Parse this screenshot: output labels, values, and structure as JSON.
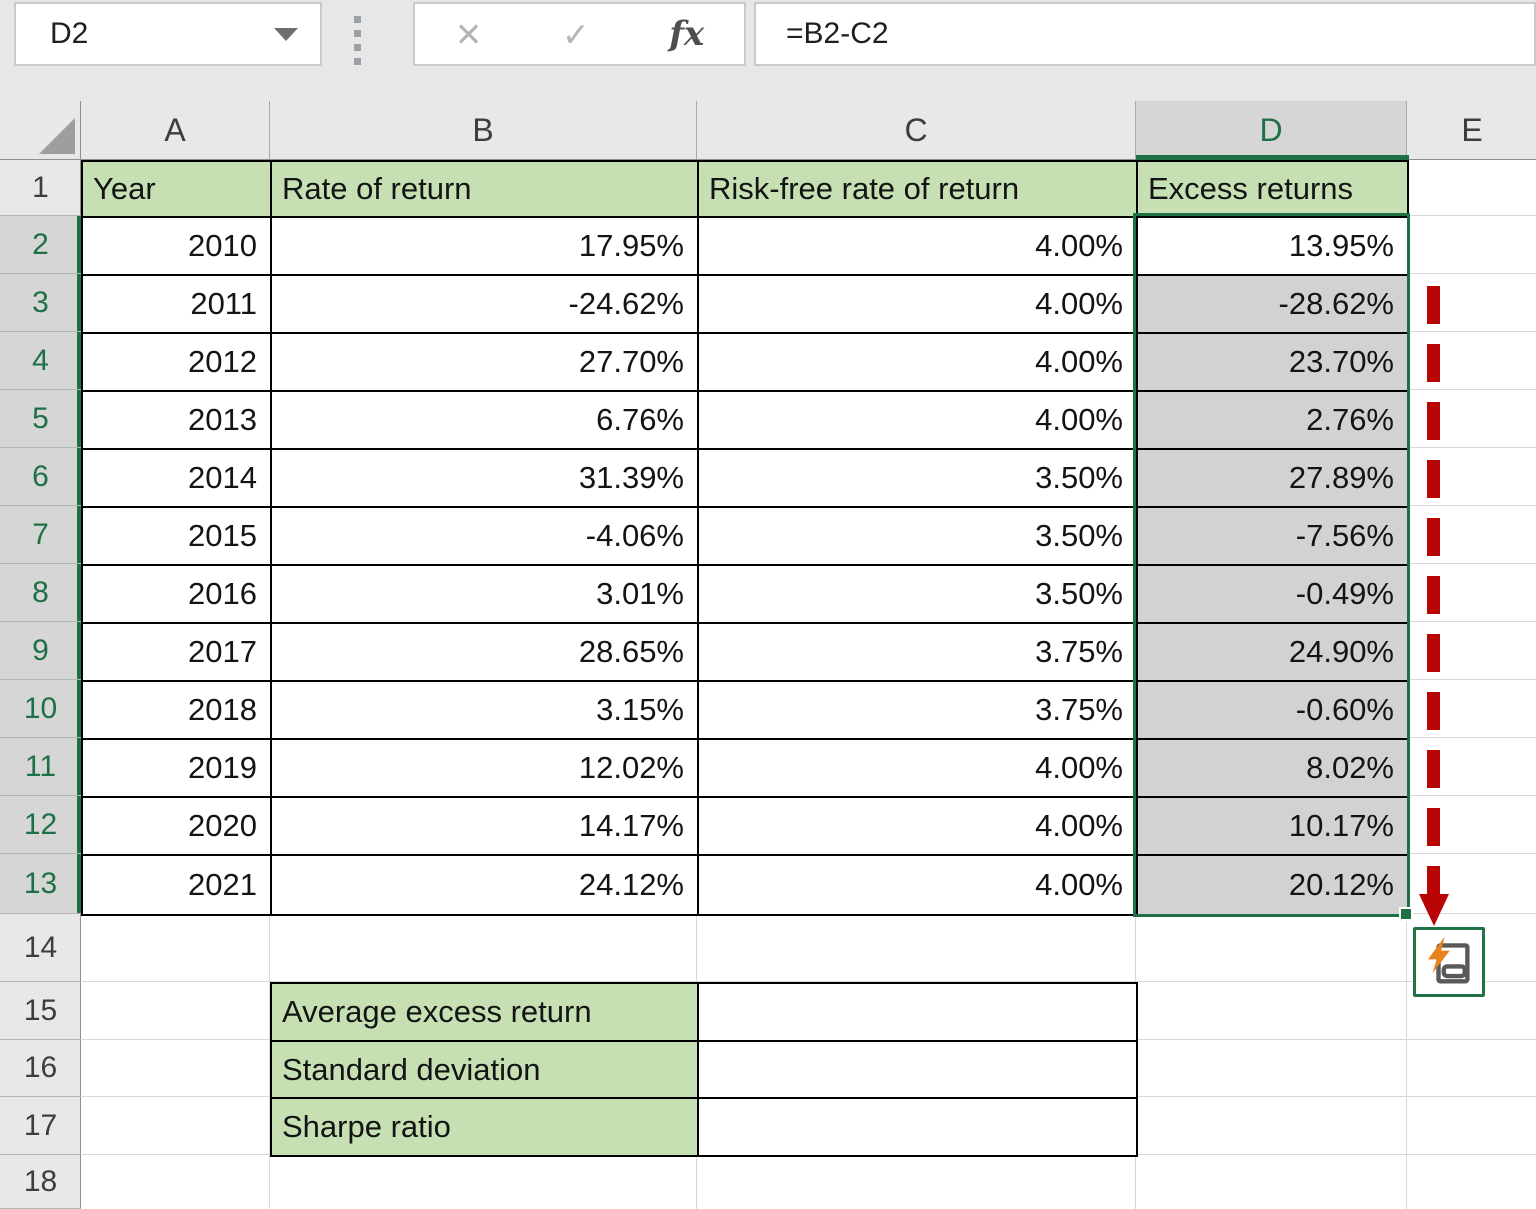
{
  "name_box": {
    "cell_reference": "D2"
  },
  "formula_bar": {
    "formula": "=B2-C2"
  },
  "icons": {
    "name_box_dropdown": "dropdown-caret",
    "cancel": "✕",
    "enter": "✓",
    "insert_function": "fx",
    "select_all": "corner-triangle",
    "flash_fill": "flash-fill-options",
    "annotation_arrow": "red-dashed-down-arrow"
  },
  "column_headers": {
    "letters": [
      "A",
      "B",
      "C",
      "D",
      "E"
    ],
    "selected": "D"
  },
  "sheet": {
    "row_count": 18,
    "selected_rows_from": 2,
    "selected_rows_to": 13,
    "table": {
      "columns": [
        "Year",
        "Rate of return",
        "Risk-free rate of return",
        "Excess returns"
      ],
      "rows": [
        {
          "row": 2,
          "year": "2010",
          "rate_of_return": "17.95%",
          "risk_free_rate": "4.00%",
          "excess_return": "13.95%"
        },
        {
          "row": 3,
          "year": "2011",
          "rate_of_return": "-24.62%",
          "risk_free_rate": "4.00%",
          "excess_return": "-28.62%"
        },
        {
          "row": 4,
          "year": "2012",
          "rate_of_return": "27.70%",
          "risk_free_rate": "4.00%",
          "excess_return": "23.70%"
        },
        {
          "row": 5,
          "year": "2013",
          "rate_of_return": "6.76%",
          "risk_free_rate": "4.00%",
          "excess_return": "2.76%"
        },
        {
          "row": 6,
          "year": "2014",
          "rate_of_return": "31.39%",
          "risk_free_rate": "3.50%",
          "excess_return": "27.89%"
        },
        {
          "row": 7,
          "year": "2015",
          "rate_of_return": "-4.06%",
          "risk_free_rate": "3.50%",
          "excess_return": "-7.56%"
        },
        {
          "row": 8,
          "year": "2016",
          "rate_of_return": "3.01%",
          "risk_free_rate": "3.50%",
          "excess_return": "-0.49%"
        },
        {
          "row": 9,
          "year": "2017",
          "rate_of_return": "28.65%",
          "risk_free_rate": "3.75%",
          "excess_return": "24.90%"
        },
        {
          "row": 10,
          "year": "2018",
          "rate_of_return": "3.15%",
          "risk_free_rate": "3.75%",
          "excess_return": "-0.60%"
        },
        {
          "row": 11,
          "year": "2019",
          "rate_of_return": "12.02%",
          "risk_free_rate": "4.00%",
          "excess_return": "8.02%"
        },
        {
          "row": 12,
          "year": "2020",
          "rate_of_return": "14.17%",
          "risk_free_rate": "4.00%",
          "excess_return": "10.17%"
        },
        {
          "row": 13,
          "year": "2021",
          "rate_of_return": "24.12%",
          "risk_free_rate": "4.00%",
          "excess_return": "20.12%"
        }
      ]
    },
    "summary": {
      "rows": [
        {
          "row": 15,
          "label": "Average excess return",
          "value": ""
        },
        {
          "row": 16,
          "label": "Standard deviation",
          "value": ""
        },
        {
          "row": 17,
          "label": "Sharpe ratio",
          "value": ""
        }
      ]
    }
  },
  "colors": {
    "excel_green": "#217346",
    "selection_border_green": "#1e7145",
    "header_fill_green": "#c6e0b4",
    "selected_cell_gray": "#d2d2d2",
    "arrow_red": "#b80404",
    "bolt_orange": "#e8821f"
  }
}
